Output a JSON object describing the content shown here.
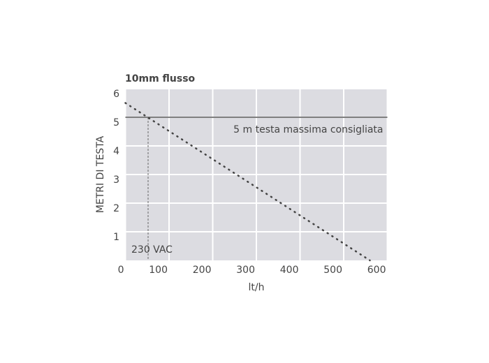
{
  "chart_data": {
    "type": "line",
    "title": "10mm flusso",
    "x_label": "lt/h",
    "y_label": "METRI DI TESTA",
    "x": [
      0,
      560
    ],
    "values": [
      5.5,
      0
    ],
    "color": "#444444",
    "xlim": [
      0,
      600
    ],
    "xticks": [
      0,
      100,
      200,
      300,
      400,
      500,
      600
    ],
    "ylim": [
      0,
      6
    ],
    "yticks": [
      1,
      2,
      3,
      4,
      5,
      6
    ],
    "grid": true,
    "limit": {
      "label": "5 m testa massima consigliata",
      "value": 5
    },
    "marker": {
      "label": "230 VAC",
      "x": 52
    }
  }
}
